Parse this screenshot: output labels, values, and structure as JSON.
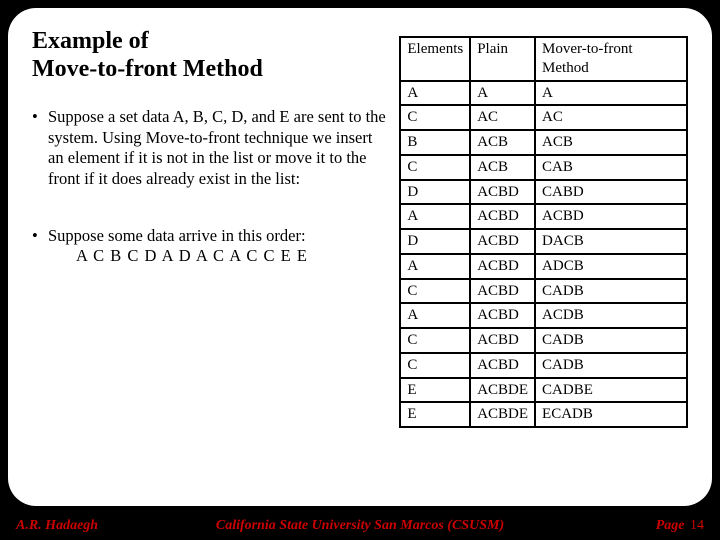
{
  "title_line1": "Example of",
  "title_line2": "Move-to-front Method",
  "bullet1": "Suppose a set data A, B, C, D, and E are sent to the system. Using Move-to-front technique we insert an element if it is not in the list or move it to the front if it does already exist in the list:",
  "bullet2": "Suppose some data arrive in this order:",
  "sequence": "A C B C D A D A C A C C E E",
  "table": {
    "headers": [
      "Elements",
      "Plain",
      "Mover-to-front Method"
    ],
    "rows": [
      [
        "A",
        "A",
        "A"
      ],
      [
        "C",
        "AC",
        "AC"
      ],
      [
        "B",
        "ACB",
        "ACB"
      ],
      [
        "C",
        "ACB",
        "CAB"
      ],
      [
        "D",
        "ACBD",
        "CABD"
      ],
      [
        "A",
        "ACBD",
        "ACBD"
      ],
      [
        "D",
        "ACBD",
        "DACB"
      ],
      [
        "A",
        "ACBD",
        "ADCB"
      ],
      [
        "C",
        "ACBD",
        "CADB"
      ],
      [
        "A",
        "ACBD",
        "ACDB"
      ],
      [
        "C",
        "ACBD",
        "CADB"
      ],
      [
        "C",
        "ACBD",
        "CADB"
      ],
      [
        "E",
        "ACBDE",
        "CADBE"
      ],
      [
        "E",
        "ACBDE",
        "ECADB"
      ]
    ]
  },
  "footer": {
    "left": "A.R. Hadaegh",
    "center": "California State University San Marcos (CSUSM)",
    "page_label": "Page",
    "page_num": "14"
  },
  "colors": {
    "slide_bg": "#ffffff",
    "page_bg": "#000000",
    "text": "#000000",
    "footer": "#cc0000",
    "border": "#000000"
  }
}
